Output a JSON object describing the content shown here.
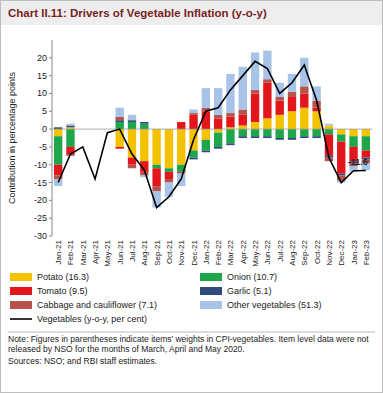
{
  "chart_data": {
    "type": "bar",
    "stacked": true,
    "title": "Chart II.11: Drivers of Vegetable Inflation (y-o-y)",
    "y_label": "Contribution in percentage points",
    "note": "Note: Figures in parentheses indicate items' weights in CPI-vegetables. Item level data were not released by NSO for the months of March, April and May 2020.",
    "source": "Sources: NSO; and RBI staff estimates.",
    "categories": [
      "Jan-21",
      "Feb-21",
      "Mar-21",
      "Apr-21",
      "May-21",
      "Jun-21",
      "Jul-21",
      "Aug-21",
      "Sep-21",
      "Oct-21",
      "Nov-21",
      "Dec-21",
      "Jan-22",
      "Feb-22",
      "Mar-22",
      "Apr-22",
      "May-22",
      "Jun-22",
      "Jul-22",
      "Aug-22",
      "Sep-22",
      "Oct-22",
      "Nov-22",
      "Dec-22",
      "Jan-23",
      "Feb-23"
    ],
    "ylim": [
      -30,
      25
    ],
    "yticks": [
      -30,
      -25,
      -20,
      -15,
      -10,
      -5,
      0,
      5,
      10,
      15,
      20
    ],
    "legend": "bottom",
    "series": [
      {
        "name": "Potato (16.3)",
        "color": "#f5c200",
        "values": [
          -2,
          0.5,
          null,
          null,
          null,
          -5,
          -8,
          -9,
          -10,
          -11,
          -10,
          -6,
          -3,
          -1,
          0.5,
          1,
          2,
          3,
          4,
          5,
          6,
          5,
          1,
          -1.5,
          -2,
          -2
        ]
      },
      {
        "name": "Onion (10.7)",
        "color": "#1ea64b",
        "values": [
          -8,
          -5,
          null,
          null,
          null,
          2,
          2,
          1.5,
          -1,
          -1,
          -2,
          -2,
          -3,
          -4,
          -4,
          -2,
          -2,
          -2,
          -2.5,
          -2.5,
          -2,
          -2,
          -1.5,
          -2,
          -3,
          -4
        ]
      },
      {
        "name": "Tomato (9.5)",
        "color": "#e3161c",
        "values": [
          -3,
          -2,
          null,
          null,
          null,
          -0.5,
          -2,
          -3,
          -5,
          -2,
          2,
          4,
          5,
          3,
          3,
          3,
          8,
          10,
          4,
          4,
          4,
          1,
          -6,
          -9,
          -4,
          -2
        ]
      },
      {
        "name": "Garlic (5.1)",
        "color": "#2f4b7c",
        "values": [
          0.5,
          0.5,
          null,
          null,
          null,
          0.5,
          0.5,
          0.5,
          0,
          0,
          0,
          -0.5,
          -0.5,
          -0.5,
          -0.5,
          -0.5,
          -0.5,
          -0.5,
          -0.5,
          -0.5,
          -0.5,
          -0.5,
          -0.5,
          -0.5,
          -0.5,
          -0.5
        ]
      },
      {
        "name": "Cabbage and cauliflower (7.1)",
        "color": "#b5534c",
        "values": [
          -1,
          -0.5,
          null,
          null,
          null,
          1,
          -1,
          -1,
          -1.5,
          -1,
          -0.5,
          0.5,
          1,
          1,
          1,
          1.5,
          1,
          1,
          1,
          1.5,
          2,
          2,
          -1,
          -1.5,
          -1,
          -1
        ]
      },
      {
        "name": "Other vegetables (51.3)",
        "color": "#a7c4e8",
        "values": [
          -2,
          0.5,
          null,
          null,
          null,
          2.5,
          1.5,
          -0.5,
          -4.5,
          -4,
          -3.5,
          1,
          5.5,
          7.5,
          11,
          12,
          10.5,
          8,
          4,
          5,
          8,
          4,
          0.5,
          -0.5,
          -1.5,
          -2
        ]
      },
      {
        "name": "Vegetables (y-o-y, per cent)",
        "color": "#000000",
        "type": "line",
        "values": [
          -15,
          -7,
          -5,
          -14,
          -1,
          0,
          -7,
          -11.5,
          -22,
          -19,
          -14,
          -3,
          5,
          6,
          11,
          15,
          19,
          17,
          10,
          13,
          18,
          8,
          -8,
          -15,
          -11.7,
          -11.6
        ]
      }
    ],
    "annotations": [
      {
        "text": "-11.6"
      }
    ]
  }
}
